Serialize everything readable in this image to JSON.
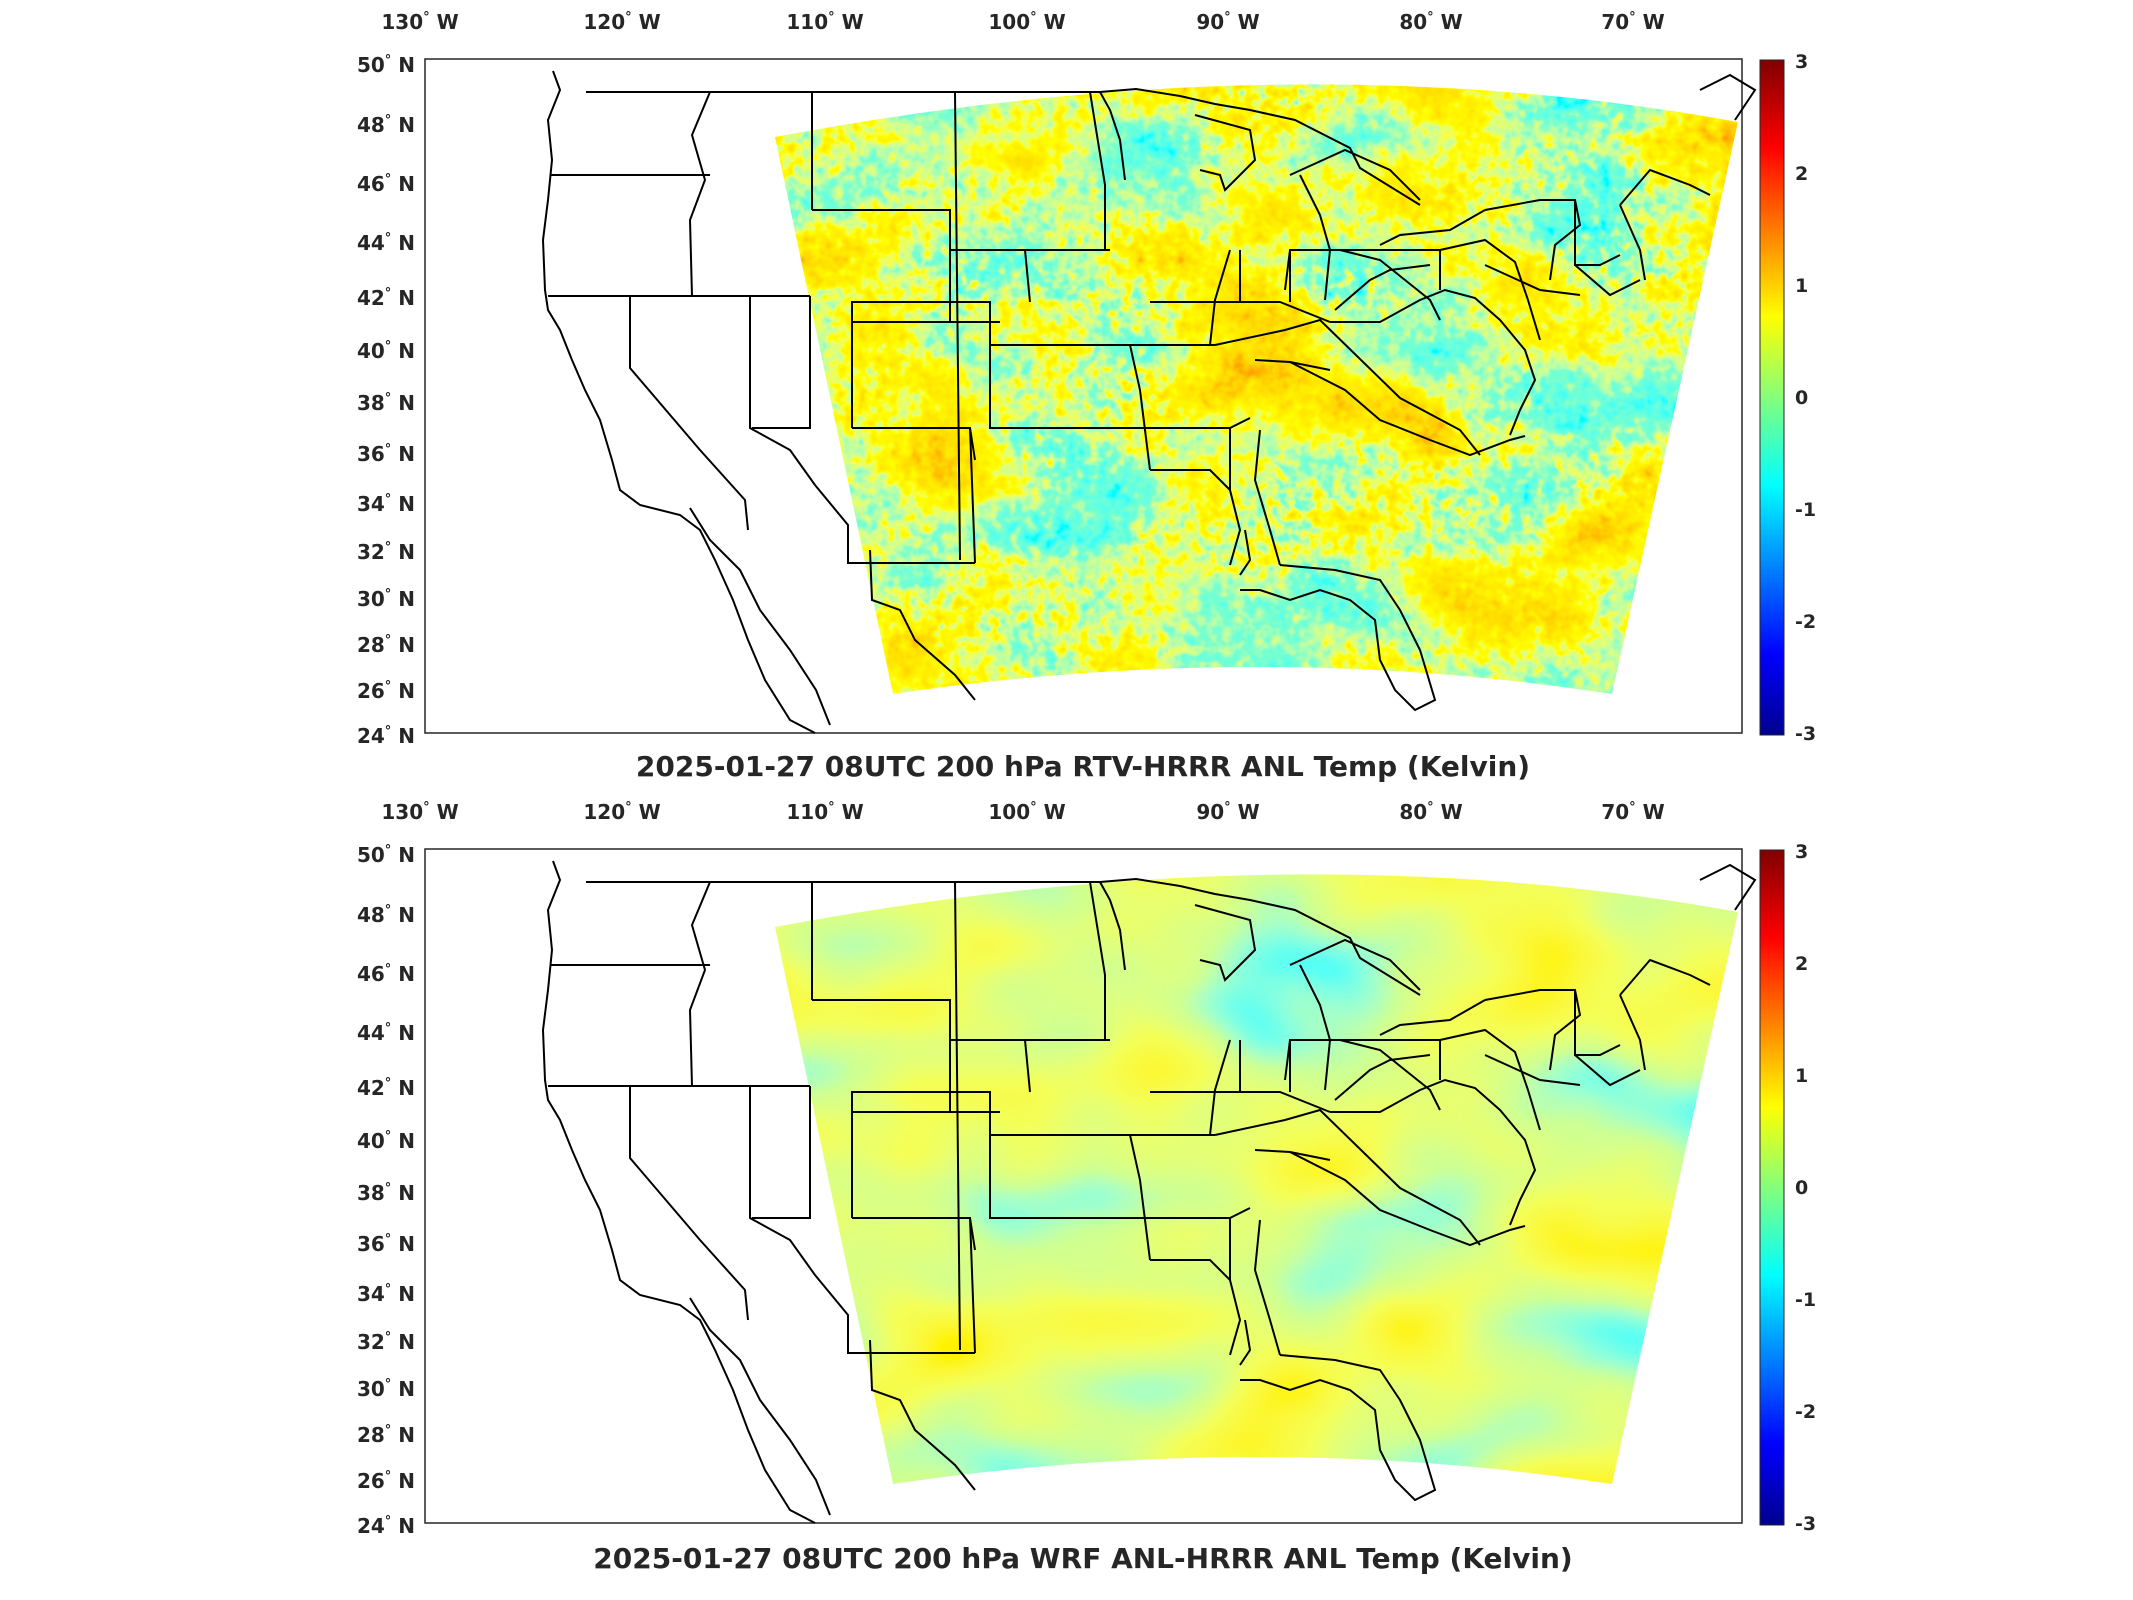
{
  "colorbar": {
    "ticks": [
      "3",
      "2",
      "1",
      "0",
      "-1",
      "-2",
      "-3"
    ],
    "min": -3,
    "max": 3
  },
  "axes": {
    "lon_labels": [
      "130",
      "120",
      "110",
      "100",
      "90",
      "80",
      "70"
    ],
    "lon_hemisphere": "W",
    "lat_labels": [
      "50",
      "48",
      "46",
      "44",
      "42",
      "40",
      "38",
      "36",
      "34",
      "32",
      "30",
      "28",
      "26",
      "24"
    ],
    "lat_hemisphere": "N",
    "degree_symbol": "°"
  },
  "panels": [
    {
      "title": "2025-01-27 08UTC 200 hPa RTV-HRRR ANL Temp (Kelvin)",
      "field_style": "noisy"
    },
    {
      "title": "2025-01-27 08UTC 200 hPa WRF ANL-HRRR ANL Temp (Kelvin)",
      "field_style": "smooth"
    }
  ],
  "colors": {
    "colormap": [
      "#00008f",
      "#0000ff",
      "#00ffff",
      "#ffff00",
      "#ff0000",
      "#800000"
    ],
    "axis": "#262626",
    "borders": "#000000"
  }
}
